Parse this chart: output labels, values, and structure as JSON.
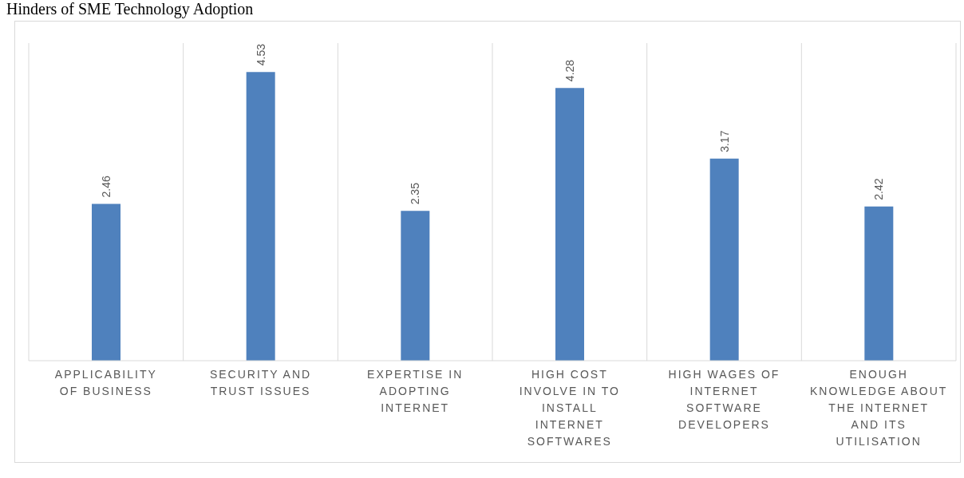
{
  "chart_data": {
    "type": "bar",
    "title": "Hinders of SME Technology Adoption",
    "categories": [
      "APPLICABILITY OF BUSINESS",
      "SECURITY AND TRUST ISSUES",
      "EXPERTISE IN ADOPTING INTERNET",
      "HIGH COST INVOLVE IN TO INSTALL INTERNET SOFTWARES",
      "HIGH WAGES OF INTERNET SOFTWARE DEVELOPERS",
      "ENOUGH KNOWLEDGE ABOUT THE INTERNET AND ITS UTILISATION"
    ],
    "values": [
      2.46,
      4.53,
      2.35,
      4.28,
      3.17,
      2.42
    ],
    "color": "#4f81bd",
    "data_labels": true,
    "grid": "x"
  }
}
